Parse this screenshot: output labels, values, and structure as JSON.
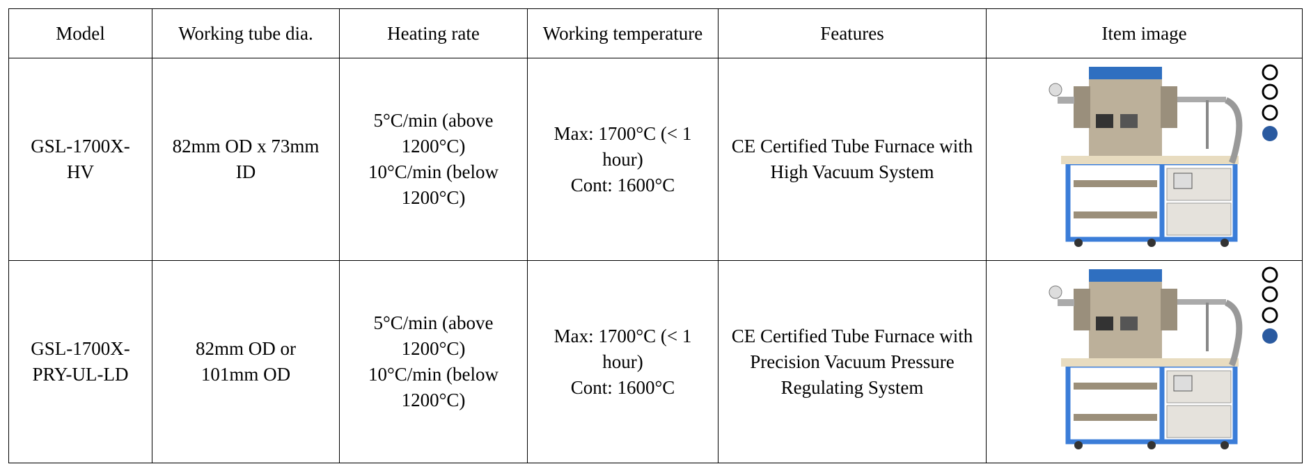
{
  "table": {
    "header": [
      "Model",
      "Working tube dia.",
      "Heating rate",
      "Working temperature",
      "Features",
      "Item image"
    ],
    "rows": [
      {
        "model": "GSL-1700X-HV",
        "tube": "82mm OD x 73mm ID",
        "heating_rate": [
          "5°C/min (above 1200°C)",
          "10°C/min (below 1200°C)"
        ],
        "temperature": [
          "Max: 1700°C (< 1 hour)",
          "Cont: 1600°C"
        ],
        "features": "CE Certified Tube Furnace with High Vacuum System"
      },
      {
        "model": "GSL-1700X-PRY-UL-LD",
        "tube": "82mm OD or 101mm OD",
        "heating_rate": [
          "5°C/min (above 1200°C)",
          "10°C/min (below 1200°C)"
        ],
        "temperature": [
          "Max: 1700°C (< 1 hour)",
          "Cont: 1600°C"
        ],
        "features": "CE Certified Tube Furnace with Precision Vacuum Pressure Regulating System"
      }
    ]
  }
}
